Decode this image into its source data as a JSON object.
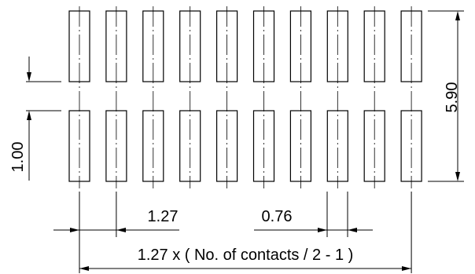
{
  "diagram": {
    "type": "technical-drawing-footprint",
    "pads_per_row": 10,
    "rows": 2,
    "dimensions": {
      "pitch": "1.27",
      "pad_width": "0.76",
      "pad_length": "1.00",
      "overall_height": "5.90",
      "overall_span": "1.27 x ( No. of contacts / 2 - 1 )"
    }
  }
}
